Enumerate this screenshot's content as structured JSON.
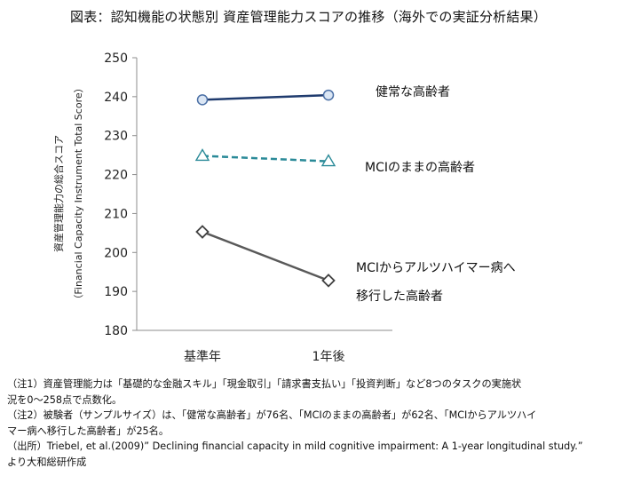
{
  "title": "図表：認知機能の状態別 資産管理能力スコアの推移（海外での実証分析結果）",
  "chart_data": {
    "type": "line",
    "categories": [
      "基準年",
      "1年後"
    ],
    "ylabel_line1": "資産管理能力の総合スコア",
    "ylabel_line2": "（Financial Capacity Instrument Total Score）",
    "ylim": [
      180,
      250
    ],
    "yticks": [
      180,
      190,
      200,
      210,
      220,
      230,
      240,
      250
    ],
    "grid": false,
    "series": [
      {
        "name": "健常な高齢者",
        "values": [
          239.2,
          240.4
        ],
        "marker": "circle",
        "dash": "solid",
        "color": "#1f3b6e",
        "marker_fill": "#dbe6f4",
        "marker_stroke": "#4a6fa5"
      },
      {
        "name": "MCIのままの高齢者",
        "values": [
          224.8,
          223.4
        ],
        "marker": "triangle",
        "dash": "dashed",
        "color": "#2a8a98",
        "marker_fill": "#ffffff",
        "marker_stroke": "#2a8a98"
      },
      {
        "name_lines": [
          "MCIからアルツハイマー病へ",
          "移行した高齢者"
        ],
        "values": [
          205.3,
          192.8
        ],
        "marker": "diamond",
        "dash": "solid",
        "color": "#595959",
        "marker_fill": "#ffffff",
        "marker_stroke": "#404040"
      }
    ]
  },
  "notes": [
    "（注1）資産管理能力は「基礎的な金融スキル」「現金取引」「請求書支払い」「投資判断」など8つのタスクの実施状",
    "況を0～258点で点数化。",
    "（注2）被験者（サンプルサイズ）は、「健常な高齢者」が76名、「MCIのままの高齢者」が62名、「MCIからアルツハイ",
    "マー病へ移行した高齢者」が25名。",
    "（出所）Triebel, et al.(2009)” Declining financial capacity in mild cognitive impairment: A 1-year longitudinal study.”",
    "より大和総研作成"
  ]
}
